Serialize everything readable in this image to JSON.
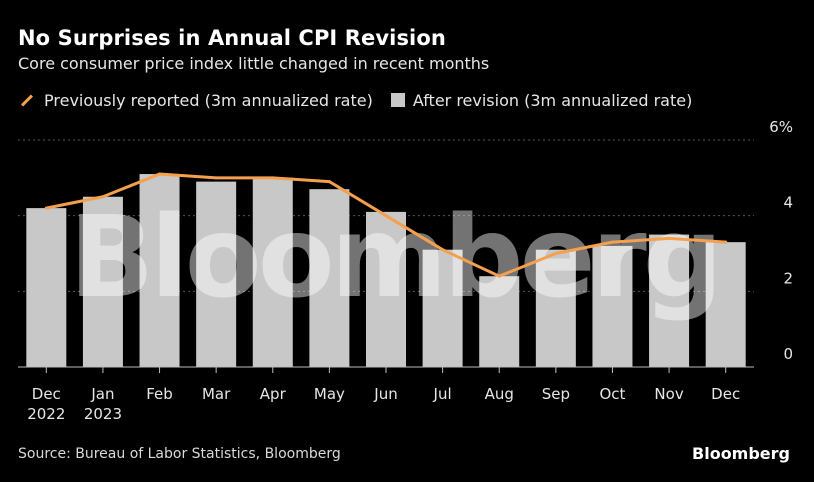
{
  "header": {
    "title": "No Surprises in Annual CPI Revision",
    "subtitle": "Core consumer price index little changed in recent months"
  },
  "legend": {
    "line_label": "Previously reported (3m annualized rate)",
    "bar_label": "After revision (3m annualized rate)"
  },
  "footer": {
    "source": "Source: Bureau of Labor Statistics, Bloomberg",
    "brand": "Bloomberg"
  },
  "watermark": "Bloomberg",
  "colors": {
    "background": "#000000",
    "bar": "#c8c8c8",
    "line": "#f5a04e",
    "grid": "#555555",
    "text": "#e6e6e6"
  },
  "chart_data": {
    "type": "bar",
    "title": "No Surprises in Annual CPI Revision",
    "subtitle": "Core consumer price index little changed in recent months",
    "categories": [
      "Dec",
      "Jan",
      "Feb",
      "Mar",
      "Apr",
      "May",
      "Jun",
      "Jul",
      "Aug",
      "Sep",
      "Oct",
      "Nov",
      "Dec"
    ],
    "category_sublabels": [
      "2022",
      "2023",
      "",
      "",
      "",
      "",
      "",
      "",
      "",
      "",
      "",
      "",
      ""
    ],
    "series": [
      {
        "name": "After revision (3m annualized rate)",
        "kind": "bar",
        "values": [
          4.2,
          4.5,
          5.1,
          4.9,
          5.0,
          4.7,
          4.1,
          3.1,
          2.4,
          3.1,
          3.2,
          3.5,
          3.3
        ]
      },
      {
        "name": "Previously reported (3m annualized rate)",
        "kind": "line",
        "values": [
          4.2,
          4.5,
          5.1,
          5.0,
          5.0,
          4.9,
          4.0,
          3.1,
          2.4,
          3.0,
          3.3,
          3.4,
          3.3
        ]
      }
    ],
    "ylim": [
      0,
      6
    ],
    "yticks": [
      0,
      2,
      4,
      6
    ],
    "ytick_labels": [
      "0",
      "2",
      "4",
      "6%"
    ],
    "xlabel": "",
    "ylabel": "",
    "grid": true,
    "legend_position": "top-left"
  }
}
